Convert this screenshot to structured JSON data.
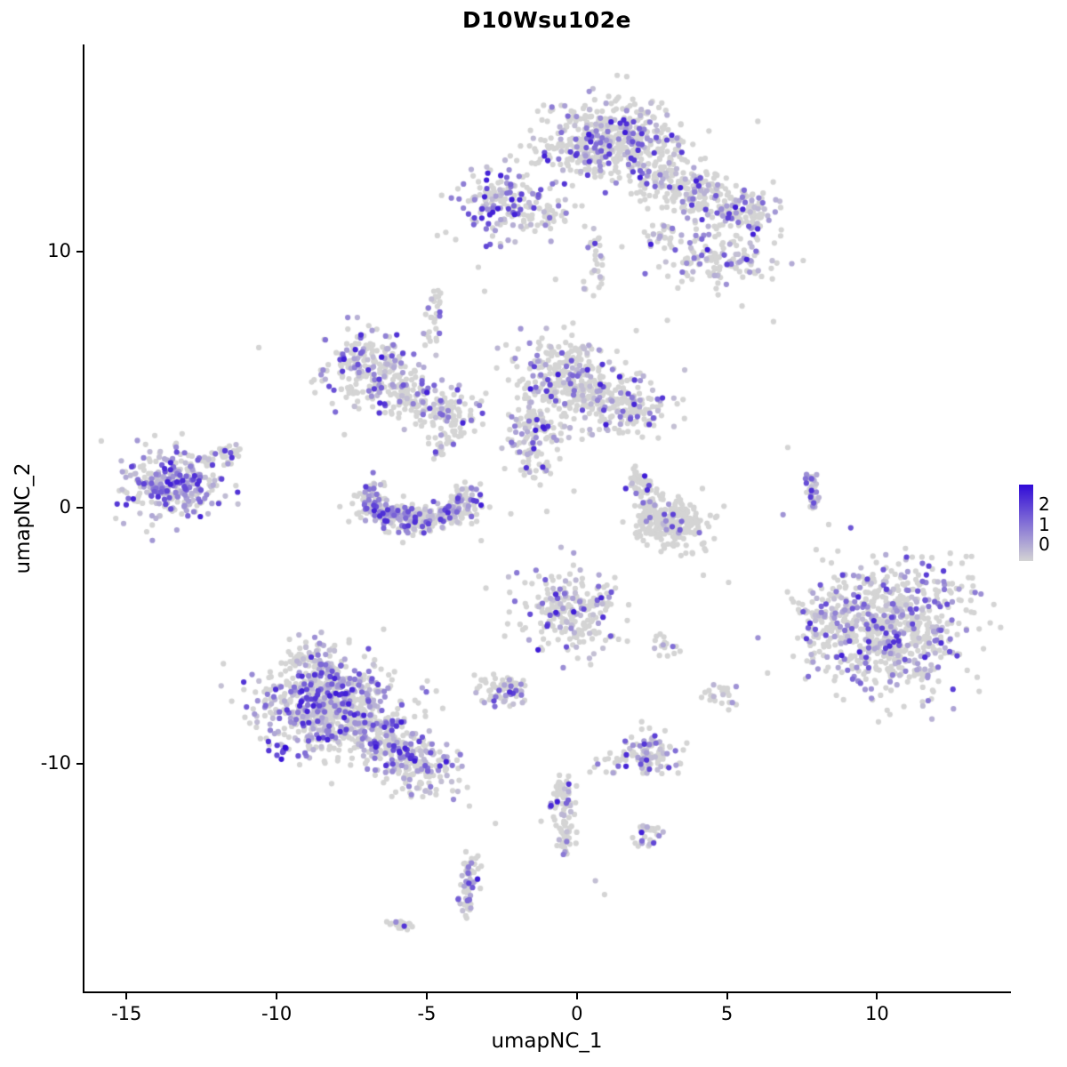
{
  "chart_data": {
    "type": "scatter",
    "title": "D10Wsu102e",
    "xlabel": "umapNC_1",
    "ylabel": "umapNC_2",
    "xlim": [
      -16.4,
      14.4
    ],
    "ylim": [
      -18.9,
      18.1
    ],
    "x_ticks": [
      -15,
      -10,
      -5,
      0,
      5,
      10
    ],
    "y_ticks": [
      -10,
      0,
      10
    ],
    "grid": false,
    "legend_position": "right",
    "legend": {
      "ticks": [
        2,
        1,
        0
      ],
      "vmax": 2.5
    },
    "colors": {
      "low": "#d4d4d4",
      "high": "#300ad7",
      "background": "#ffffff",
      "axis": "#000000"
    },
    "point_radius": 3.1,
    "seed": 42,
    "clusters": [
      {
        "t": "gauss",
        "c": [
          1.1,
          14.3
        ],
        "sd": [
          1.15,
          0.75
        ],
        "n": 520,
        "f": 0.28
      },
      {
        "t": "line",
        "from": [
          2.2,
          13.4
        ],
        "to": [
          5.3,
          11.5
        ],
        "j": 0.55,
        "n": 260,
        "f": 0.25
      },
      {
        "t": "gauss",
        "c": [
          5.6,
          11.6
        ],
        "sd": [
          0.55,
          0.45
        ],
        "n": 90,
        "f": 0.3
      },
      {
        "t": "gauss",
        "c": [
          -2.6,
          11.9
        ],
        "sd": [
          0.8,
          0.65
        ],
        "n": 170,
        "f": 0.4
      },
      {
        "t": "line",
        "from": [
          -1.6,
          11.3
        ],
        "to": [
          -0.3,
          11.6
        ],
        "j": 0.25,
        "n": 40,
        "f": 0.2
      },
      {
        "t": "gauss",
        "c": [
          4.8,
          9.6
        ],
        "sd": [
          0.85,
          0.5
        ],
        "n": 130,
        "f": 0.35
      },
      {
        "t": "gauss",
        "c": [
          2.9,
          10.7
        ],
        "sd": [
          0.3,
          0.3
        ],
        "n": 30,
        "f": 0.2
      },
      {
        "t": "line",
        "from": [
          0.5,
          10.9
        ],
        "to": [
          0.7,
          8.4
        ],
        "j": 0.15,
        "n": 30,
        "f": 0.2
      },
      {
        "t": "gauss",
        "c": [
          -6.8,
          5.3
        ],
        "sd": [
          0.75,
          0.75
        ],
        "n": 240,
        "f": 0.35
      },
      {
        "t": "line",
        "from": [
          -5.9,
          4.4
        ],
        "to": [
          -4.2,
          3.6
        ],
        "j": 0.4,
        "n": 120,
        "f": 0.3
      },
      {
        "t": "line",
        "from": [
          -4.9,
          6.3
        ],
        "to": [
          -4.7,
          8.6
        ],
        "j": 0.15,
        "n": 30,
        "f": 0.25
      },
      {
        "t": "gauss",
        "c": [
          -0.4,
          5.0
        ],
        "sd": [
          0.85,
          0.85
        ],
        "n": 320,
        "f": 0.3
      },
      {
        "t": "gauss",
        "c": [
          1.6,
          3.9
        ],
        "sd": [
          0.75,
          0.6
        ],
        "n": 170,
        "f": 0.3
      },
      {
        "t": "line",
        "from": [
          -1.8,
          3.6
        ],
        "to": [
          -0.6,
          2.8
        ],
        "j": 0.35,
        "n": 80,
        "f": 0.3
      },
      {
        "t": "line",
        "from": [
          -2.0,
          2.6
        ],
        "to": [
          -1.2,
          1.4
        ],
        "j": 0.3,
        "n": 50,
        "f": 0.25
      },
      {
        "t": "arc",
        "c": [
          -5.3,
          0.55
        ],
        "r": 1.6,
        "ry": 0.7,
        "a0": 170,
        "a1": 365,
        "j": 0.25,
        "n": 300,
        "f": 0.4
      },
      {
        "t": "gauss",
        "c": [
          -5.3,
          -0.3
        ],
        "sd": [
          0.9,
          0.3
        ],
        "n": 90,
        "f": 0.35
      },
      {
        "t": "line",
        "from": [
          -4.6,
          2.2
        ],
        "to": [
          -3.6,
          4.0
        ],
        "j": 0.3,
        "n": 60,
        "f": 0.2
      },
      {
        "t": "gauss",
        "c": [
          -13.4,
          0.9
        ],
        "sd": [
          0.85,
          0.7
        ],
        "n": 300,
        "f": 0.55
      },
      {
        "t": "line",
        "from": [
          -12.3,
          1.8
        ],
        "to": [
          -11.4,
          2.2
        ],
        "j": 0.2,
        "n": 30,
        "f": 0.3
      },
      {
        "t": "gauss",
        "c": [
          3.1,
          -0.6
        ],
        "sd": [
          0.65,
          0.5
        ],
        "n": 260,
        "f": 0.06
      },
      {
        "t": "line",
        "from": [
          1.9,
          1.3
        ],
        "to": [
          2.7,
          0.0
        ],
        "j": 0.25,
        "n": 60,
        "f": 0.2
      },
      {
        "t": "line",
        "from": [
          7.8,
          1.3
        ],
        "to": [
          7.9,
          0.1
        ],
        "j": 0.1,
        "n": 40,
        "f": 0.55
      },
      {
        "t": "gauss",
        "c": [
          10.4,
          -4.7
        ],
        "sd": [
          1.35,
          1.25
        ],
        "n": 750,
        "f": 0.32
      },
      {
        "t": "gauss",
        "c": [
          8.2,
          -4.4
        ],
        "sd": [
          0.4,
          0.55
        ],
        "n": 60,
        "f": 0.3
      },
      {
        "t": "gauss",
        "c": [
          -0.2,
          -4.1
        ],
        "sd": [
          0.85,
          0.8
        ],
        "n": 230,
        "f": 0.28
      },
      {
        "t": "gauss",
        "c": [
          3.0,
          -5.4
        ],
        "sd": [
          0.25,
          0.2
        ],
        "n": 15,
        "f": 0.2
      },
      {
        "t": "gauss",
        "c": [
          -8.3,
          -7.7
        ],
        "sd": [
          1.2,
          0.95
        ],
        "n": 700,
        "f": 0.42
      },
      {
        "t": "line",
        "from": [
          -6.8,
          -8.9
        ],
        "to": [
          -4.6,
          -10.6
        ],
        "j": 0.55,
        "n": 280,
        "f": 0.4
      },
      {
        "t": "line",
        "from": [
          -9.3,
          -5.6
        ],
        "to": [
          -8.4,
          -6.4
        ],
        "j": 0.35,
        "n": 60,
        "f": 0.3
      },
      {
        "t": "gauss",
        "c": [
          -9.9,
          -9.5
        ],
        "sd": [
          0.25,
          0.2
        ],
        "n": 12,
        "f": 0.95,
        "vmin": 1.6,
        "vmax": 2.6
      },
      {
        "t": "gauss",
        "c": [
          -2.5,
          -7.1
        ],
        "sd": [
          0.42,
          0.35
        ],
        "n": 75,
        "f": 0.3
      },
      {
        "t": "gauss",
        "c": [
          2.4,
          -9.6
        ],
        "sd": [
          0.5,
          0.42
        ],
        "n": 100,
        "f": 0.4
      },
      {
        "t": "line",
        "from": [
          -0.5,
          -10.6
        ],
        "to": [
          -0.3,
          -13.4
        ],
        "j": 0.22,
        "n": 90,
        "f": 0.2
      },
      {
        "t": "gauss",
        "c": [
          2.3,
          -12.8
        ],
        "sd": [
          0.28,
          0.22
        ],
        "n": 28,
        "f": 0.4
      },
      {
        "t": "line",
        "from": [
          -3.5,
          -13.7
        ],
        "to": [
          -3.7,
          -15.9
        ],
        "j": 0.16,
        "n": 65,
        "f": 0.3
      },
      {
        "t": "gauss",
        "c": [
          -5.9,
          -16.3
        ],
        "sd": [
          0.22,
          0.16
        ],
        "n": 18,
        "f": 0.1
      },
      {
        "t": "gauss",
        "c": [
          4.8,
          -7.3
        ],
        "sd": [
          0.28,
          0.2
        ],
        "n": 22,
        "f": 0.35
      },
      {
        "t": "line",
        "from": [
          0.2,
          -10.3
        ],
        "to": [
          1.8,
          -9.8
        ],
        "j": 0.2,
        "n": 15,
        "f": 0.2
      },
      {
        "t": "points",
        "pts": [
          [
            -3.1,
            8.5
          ],
          [
            6.6,
            7.2
          ],
          [
            -10.6,
            6.3
          ],
          [
            -3.3,
            9.4
          ],
          [
            0.2,
            8.6
          ],
          [
            -0.6,
            9.0
          ],
          [
            5.6,
            7.9
          ],
          [
            -12.0,
            2.4
          ],
          [
            4.4,
            -2.6
          ],
          [
            5.0,
            -2.9
          ],
          [
            -3.0,
            -3.4
          ],
          [
            -3.4,
            -11.6
          ],
          [
            -2.6,
            -12.3
          ],
          [
            0.6,
            -14.6
          ],
          [
            1.0,
            -15.2
          ],
          [
            6.9,
            -0.3
          ],
          [
            7.0,
            2.4
          ],
          [
            -7.6,
            2.9
          ],
          [
            -0.2,
            0.7
          ],
          [
            2.0,
            6.9
          ],
          [
            3.0,
            7.3
          ],
          [
            -4.4,
            10.6
          ],
          [
            6.0,
            10.5
          ],
          [
            3.4,
            8.6
          ],
          [
            1.4,
            10.3
          ],
          [
            -3.2,
            -1.4
          ],
          [
            5.2,
            -7.9
          ],
          [
            -1.0,
            -0.2
          ]
        ],
        "f": 0.15
      }
    ]
  }
}
